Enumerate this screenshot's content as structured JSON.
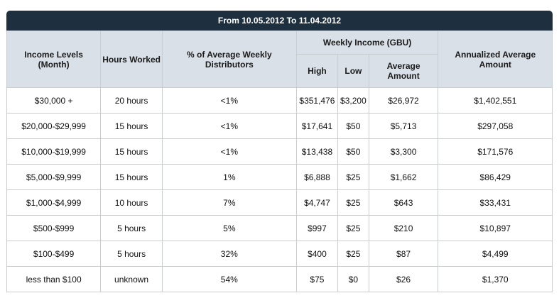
{
  "title": "From 10.05.2012 To 11.04.2012",
  "headers": {
    "income_levels": "Income Levels (Month)",
    "hours_worked": "Hours Worked",
    "pct_distributors": "% of Average Weekly Distributors",
    "weekly_income": "Weekly Income (GBU)",
    "high": "High",
    "low": "Low",
    "average_amount": "Average Amount",
    "annualized": "Annualized Average Amount"
  },
  "rows": [
    [
      "$30,000 +",
      "20 hours",
      "<1%",
      "$351,476",
      "$3,200",
      "$26,972",
      "$1,402,551"
    ],
    [
      "$20,000-$29,999",
      "15 hours",
      "<1%",
      "$17,641",
      "$50",
      "$5,713",
      "$297,058"
    ],
    [
      "$10,000-$19,999",
      "15 hours",
      "<1%",
      "$13,438",
      "$50",
      "$3,300",
      "$171,576"
    ],
    [
      "$5,000-$9,999",
      "15 hours",
      "1%",
      "$6,888",
      "$25",
      "$1,662",
      "$86,429"
    ],
    [
      "$1,000-$4,999",
      "10 hours",
      "7%",
      "$4,747",
      "$25",
      "$643",
      "$33,431"
    ],
    [
      "$500-$999",
      "5 hours",
      "5%",
      "$997",
      "$25",
      "$210",
      "$10,897"
    ],
    [
      "$100-$499",
      "5 hours",
      "32%",
      "$400",
      "$25",
      "$87",
      "$4,499"
    ],
    [
      "less than $100",
      "unknown",
      "54%",
      "$75",
      "$0",
      "$26",
      "$1,370"
    ]
  ]
}
